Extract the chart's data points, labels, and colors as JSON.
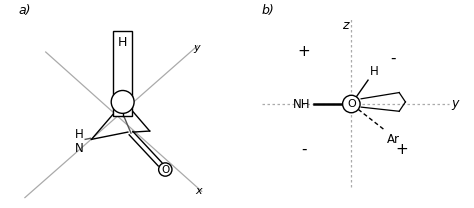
{
  "bg_color": "#ffffff",
  "line_color": "#aaaaaa",
  "dark_color": "#000000",
  "panel_a_label": "a)",
  "panel_b_label": "b)",
  "label_H_a": "H",
  "label_NH_a": "N\nH",
  "label_O_a": "O",
  "label_y_a": "y",
  "label_x_a": "x",
  "label_z_b": "z",
  "label_y_b": "y",
  "label_H_b": "H",
  "label_NH_b": "NH",
  "label_O_b": "O",
  "label_Ar_b": "Ar",
  "quad_labels": [
    "+",
    "-",
    "-",
    "+"
  ]
}
